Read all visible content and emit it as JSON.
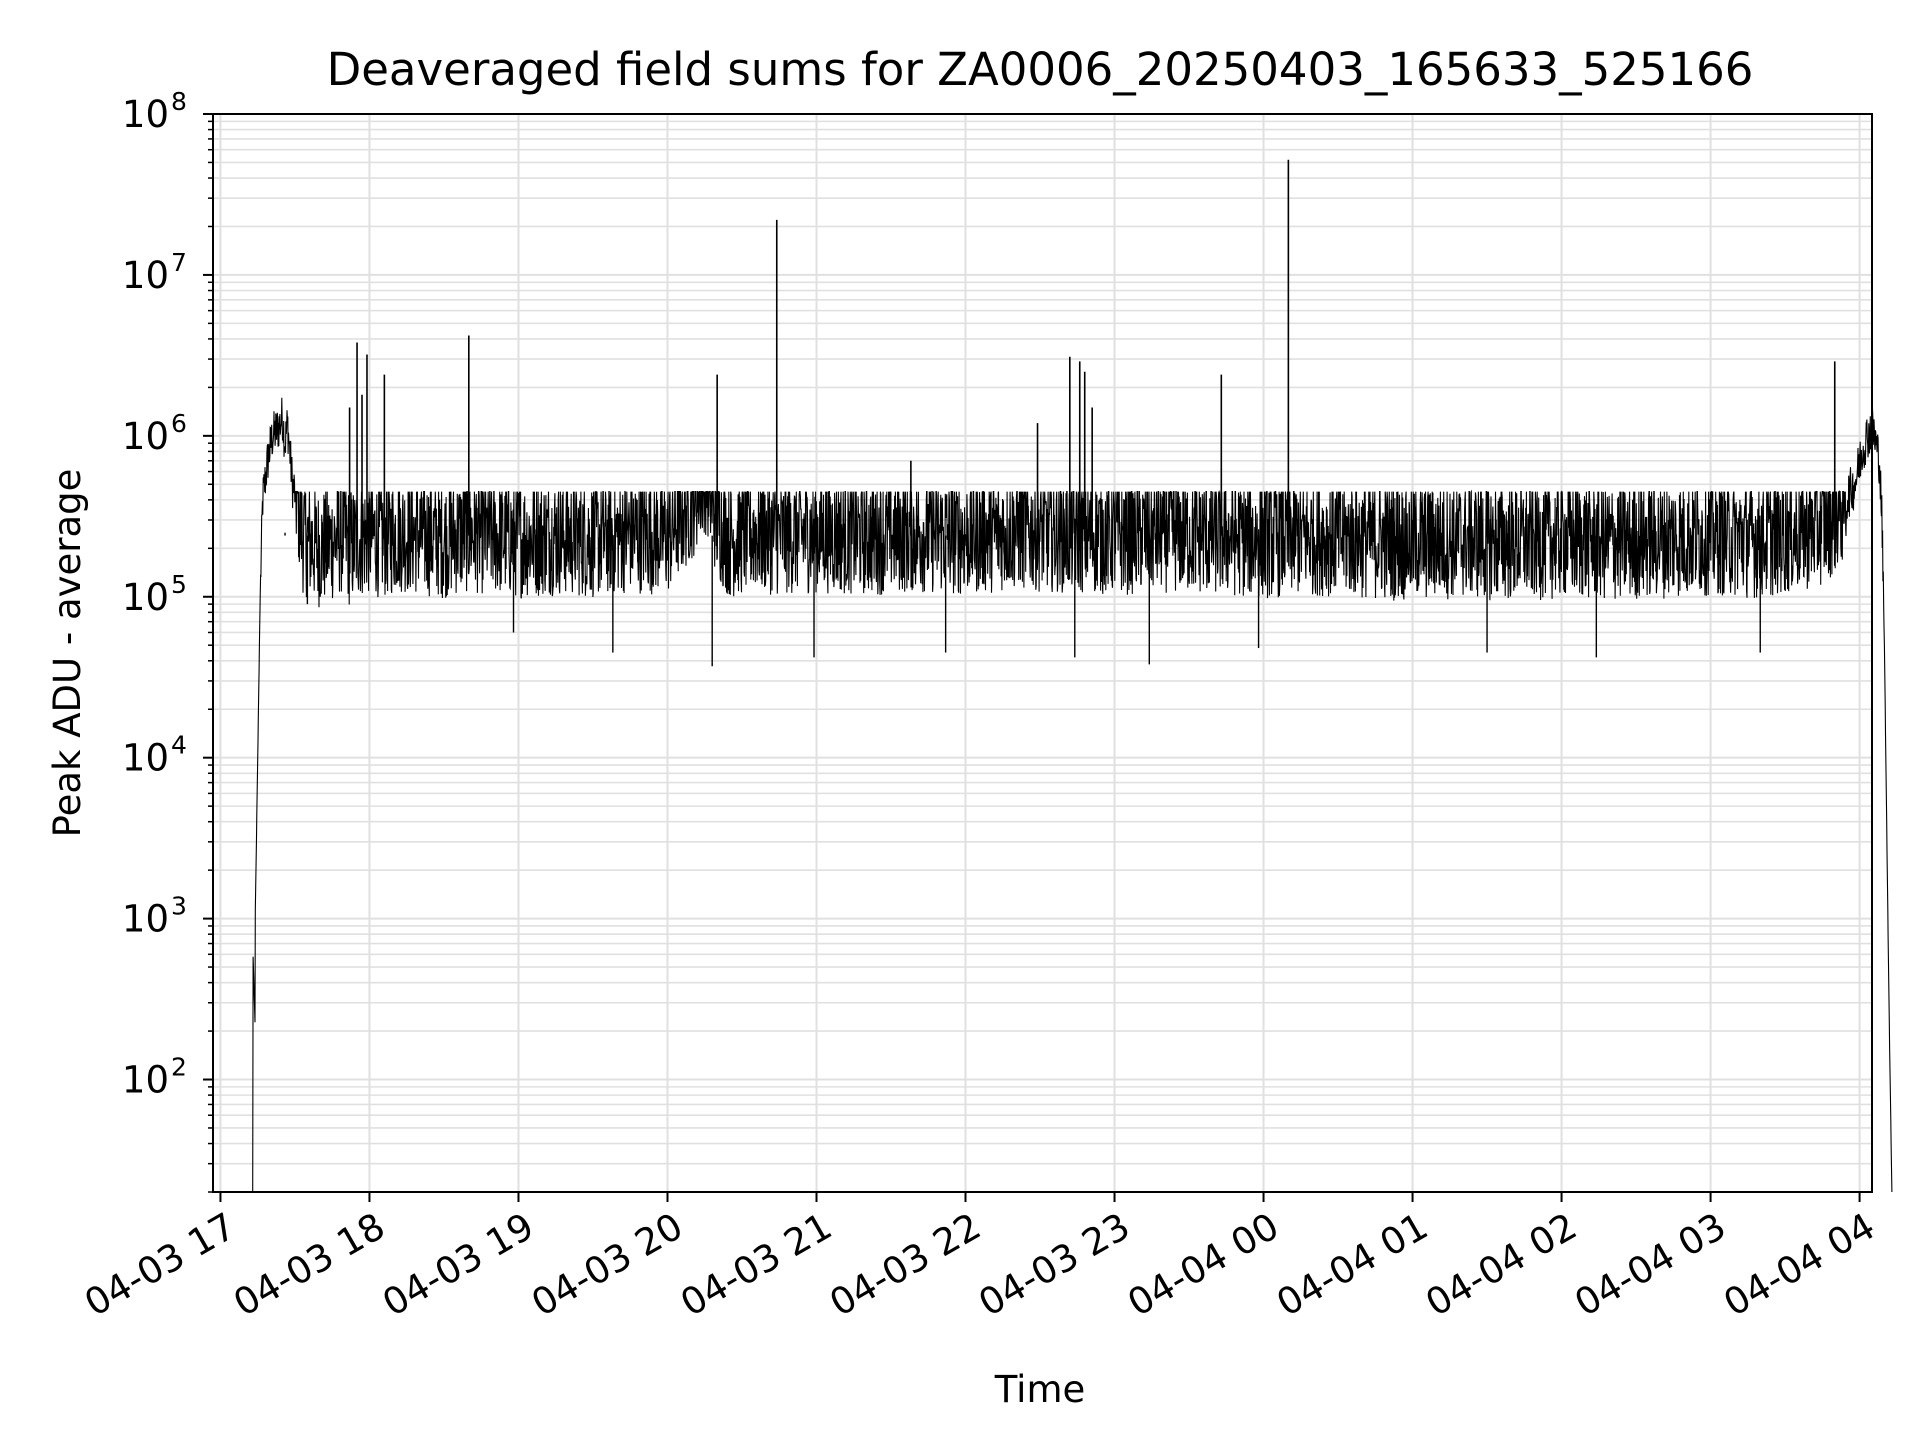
{
  "chart_data": {
    "type": "line",
    "title": "Deaveraged field sums for ZA0006_20250403_165633_525166",
    "xlabel": "Time",
    "ylabel": "Peak ADU - average",
    "y_scale": "log",
    "ylim": [
      20,
      100000000
    ],
    "xlim": [
      "2025-04-03 16:57",
      "2025-04-04 04:05"
    ],
    "grid": true,
    "grid_color": "#e0e0e0",
    "line_color": "#000000",
    "x_ticks": [
      {
        "value": "2025-04-03 17:00",
        "label": "04-03 17"
      },
      {
        "value": "2025-04-03 18:00",
        "label": "04-03 18"
      },
      {
        "value": "2025-04-03 19:00",
        "label": "04-03 19"
      },
      {
        "value": "2025-04-03 20:00",
        "label": "04-03 20"
      },
      {
        "value": "2025-04-03 21:00",
        "label": "04-03 21"
      },
      {
        "value": "2025-04-03 22:00",
        "label": "04-03 22"
      },
      {
        "value": "2025-04-03 23:00",
        "label": "04-03 23"
      },
      {
        "value": "2025-04-04 00:00",
        "label": "04-04 00"
      },
      {
        "value": "2025-04-04 01:00",
        "label": "04-04 01"
      },
      {
        "value": "2025-04-04 02:00",
        "label": "04-04 02"
      },
      {
        "value": "2025-04-04 03:00",
        "label": "04-04 03"
      },
      {
        "value": "2025-04-04 04:00",
        "label": "04-04 04"
      }
    ],
    "y_ticks": [
      {
        "value": 100,
        "base": "10",
        "exp": "2"
      },
      {
        "value": 1000,
        "base": "10",
        "exp": "3"
      },
      {
        "value": 10000,
        "base": "10",
        "exp": "4"
      },
      {
        "value": 100000,
        "base": "10",
        "exp": "5"
      },
      {
        "value": 1000000,
        "base": "10",
        "exp": "6"
      },
      {
        "value": 10000000,
        "base": "10",
        "exp": "7"
      },
      {
        "value": 100000000,
        "base": "10",
        "exp": "8"
      }
    ],
    "series": [
      {
        "x": [
          "2025-04-03 17:13",
          "2025-04-03 17:13",
          "2025-04-03 17:14",
          "2025-04-03 17:14",
          "2025-04-03 17:15",
          "2025-04-03 17:16",
          "2025-04-03 17:17",
          "2025-04-03 17:19",
          "2025-04-03 17:21",
          "2025-04-03 17:23",
          "2025-04-03 17:25",
          "2025-04-03 17:26",
          "2025-04-03 17:27",
          "2025-04-03 17:29",
          "2025-04-03 17:31",
          "2025-04-03 17:33",
          "2025-04-03 17:36",
          "2025-04-03 17:40",
          "2025-04-03 17:45",
          "2025-04-03 17:50",
          "2025-04-03 17:52",
          "2025-04-03 17:56",
          "2025-04-03 18:00",
          "2025-04-03 18:06",
          "2025-04-03 18:12",
          "2025-04-03 18:20",
          "2025-04-03 18:30",
          "2025-04-03 18:40",
          "2025-04-03 18:50",
          "2025-04-03 19:00",
          "2025-04-03 19:15",
          "2025-04-03 19:30",
          "2025-04-03 19:45",
          "2025-04-03 20:00",
          "2025-04-03 20:10",
          "2025-04-03 20:15",
          "2025-04-03 20:20",
          "2025-04-03 20:25",
          "2025-04-03 20:35",
          "2025-04-03 20:45",
          "2025-04-03 21:00",
          "2025-04-03 21:20",
          "2025-04-03 21:40",
          "2025-04-03 22:00",
          "2025-04-03 22:20",
          "2025-04-03 22:40",
          "2025-04-03 23:00",
          "2025-04-03 23:20",
          "2025-04-03 23:40",
          "2025-04-04 00:00",
          "2025-04-04 00:20",
          "2025-04-04 00:40",
          "2025-04-04 01:00",
          "2025-04-04 01:20",
          "2025-04-04 01:40",
          "2025-04-04 02:00",
          "2025-04-04 02:20",
          "2025-04-04 02:40",
          "2025-04-04 03:00",
          "2025-04-04 03:20",
          "2025-04-04 03:35",
          "2025-04-04 03:45",
          "2025-04-04 03:52",
          "2025-04-04 03:58",
          "2025-04-04 04:01",
          "2025-04-04 04:03",
          "2025-04-04 04:05",
          "2025-04-04 04:06",
          "2025-04-04 04:08",
          "2025-04-04 04:09",
          "2025-04-04 04:10",
          "2025-04-04 04:11",
          "2025-04-04 04:12",
          "2025-04-04 04:13"
        ],
        "y": [
          20,
          700,
          200,
          1000,
          10000,
          100000,
          400000,
          700000,
          1000000,
          1100000,
          1300000,
          900000,
          1200000,
          500000,
          400000,
          250000,
          220000,
          200000,
          220000,
          250000,
          200000,
          230000,
          240000,
          230000,
          250000,
          240000,
          230000,
          250000,
          240000,
          230000,
          240000,
          230000,
          250000,
          240000,
          400000,
          600000,
          300000,
          230000,
          250000,
          240000,
          250000,
          240000,
          250000,
          240000,
          260000,
          250000,
          240000,
          250000,
          240000,
          230000,
          240000,
          230000,
          220000,
          230000,
          220000,
          230000,
          220000,
          230000,
          240000,
          230000,
          250000,
          280000,
          350000,
          500000,
          800000,
          1000000,
          1100000,
          1000000,
          700000,
          300000,
          50000,
          3000,
          200,
          20
        ]
      }
    ],
    "noise": {
      "low": 60000,
      "high": 450000
    },
    "spikes": [
      {
        "x": "2025-04-03 17:52",
        "y": 1500000
      },
      {
        "x": "2025-04-03 17:55",
        "y": 3800000
      },
      {
        "x": "2025-04-03 17:57",
        "y": 1800000
      },
      {
        "x": "2025-04-03 17:59",
        "y": 3200000
      },
      {
        "x": "2025-04-03 18:06",
        "y": 2400000
      },
      {
        "x": "2025-04-03 18:40",
        "y": 4200000
      },
      {
        "x": "2025-04-03 20:20",
        "y": 2400000
      },
      {
        "x": "2025-04-03 20:44",
        "y": 22000000
      },
      {
        "x": "2025-04-03 21:38",
        "y": 700000
      },
      {
        "x": "2025-04-03 22:29",
        "y": 1200000
      },
      {
        "x": "2025-04-03 22:42",
        "y": 3100000
      },
      {
        "x": "2025-04-03 22:46",
        "y": 2900000
      },
      {
        "x": "2025-04-03 22:48",
        "y": 2500000
      },
      {
        "x": "2025-04-03 22:51",
        "y": 1500000
      },
      {
        "x": "2025-04-03 23:43",
        "y": 2400000
      },
      {
        "x": "2025-04-04 00:10",
        "y": 52000000
      },
      {
        "x": "2025-04-04 03:50",
        "y": 2900000
      }
    ],
    "dips": [
      {
        "x": "2025-04-03 17:26",
        "y": 250000
      },
      {
        "x": "2025-04-03 17:35",
        "y": 90000
      },
      {
        "x": "2025-04-03 18:58",
        "y": 60000
      },
      {
        "x": "2025-04-03 19:38",
        "y": 45000
      },
      {
        "x": "2025-04-03 20:18",
        "y": 37000
      },
      {
        "x": "2025-04-03 20:59",
        "y": 42000
      },
      {
        "x": "2025-04-03 21:52",
        "y": 45000
      },
      {
        "x": "2025-04-03 22:44",
        "y": 42000
      },
      {
        "x": "2025-04-03 23:14",
        "y": 38000
      },
      {
        "x": "2025-04-03 23:58",
        "y": 48000
      },
      {
        "x": "2025-04-04 01:30",
        "y": 45000
      },
      {
        "x": "2025-04-04 02:14",
        "y": 42000
      },
      {
        "x": "2025-04-04 03:20",
        "y": 45000
      }
    ]
  }
}
